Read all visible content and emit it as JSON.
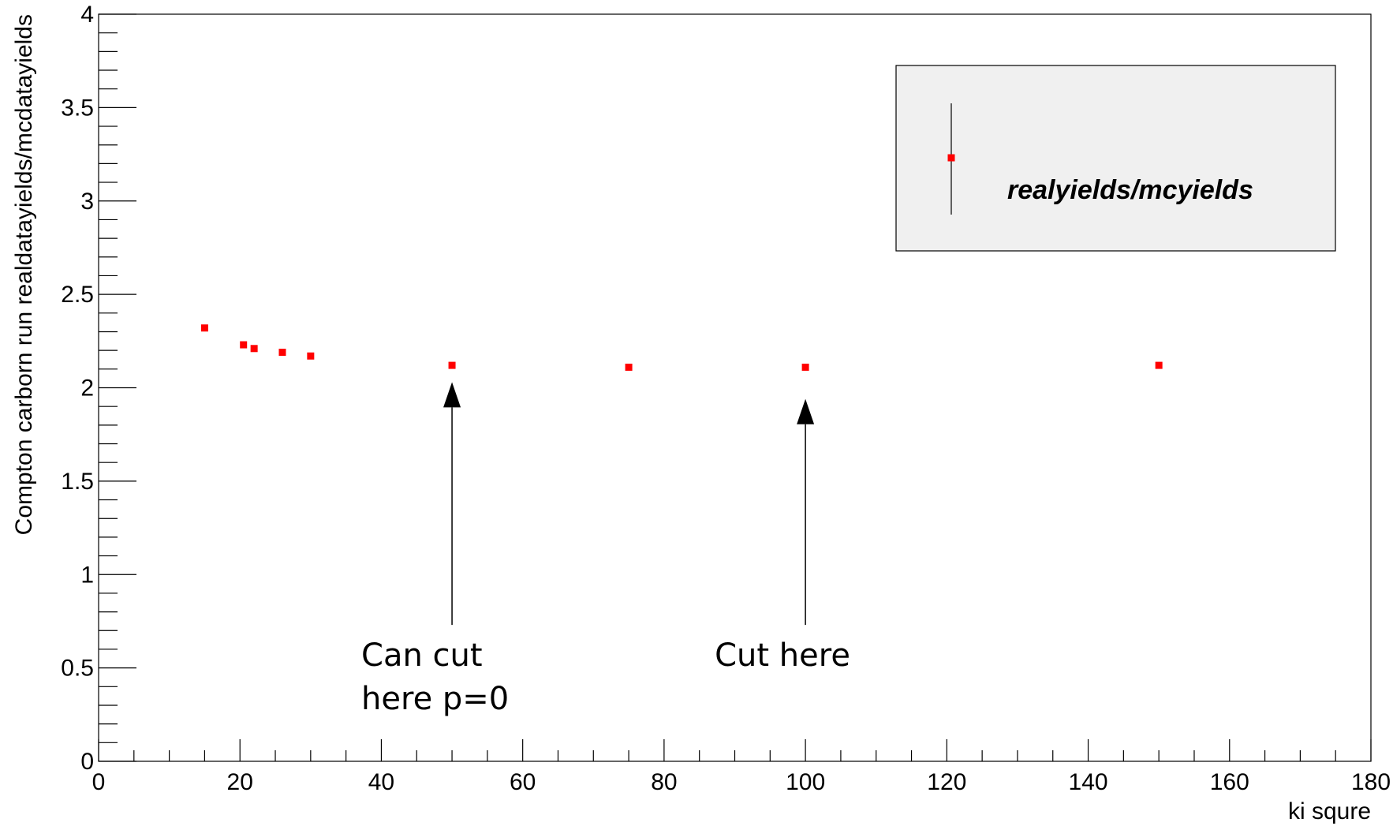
{
  "chart_data": {
    "type": "scatter",
    "title": "",
    "xlabel": "ki squre",
    "ylabel": "Compton carborn run realdatayields/mcdatayields",
    "xlim": [
      0,
      180
    ],
    "ylim": [
      0,
      4
    ],
    "x_ticks": [
      "0",
      "20",
      "40",
      "60",
      "80",
      "100",
      "120",
      "140",
      "160",
      "180"
    ],
    "y_ticks": [
      "0",
      "0.5",
      "1",
      "1.5",
      "2",
      "2.5",
      "3",
      "3.5",
      "4"
    ],
    "grid": false,
    "legend_position": "top-right",
    "series": [
      {
        "name": "realyields/mcyields",
        "color": "#ff0000",
        "marker": "square",
        "x": [
          15,
          20.5,
          22,
          26,
          30,
          50,
          75,
          100,
          150
        ],
        "y": [
          2.32,
          2.23,
          2.21,
          2.19,
          2.17,
          2.12,
          2.11,
          2.11,
          2.12
        ]
      }
    ],
    "annotations": [
      {
        "lines": [
          "Can cut",
          "here p=0"
        ],
        "arrow_x": 50,
        "arrow_from_y": 0.73,
        "arrow_to_y": 2.03
      },
      {
        "lines": [
          "Cut here"
        ],
        "arrow_x": 100,
        "arrow_from_y": 0.73,
        "arrow_to_y": 1.94
      }
    ]
  }
}
